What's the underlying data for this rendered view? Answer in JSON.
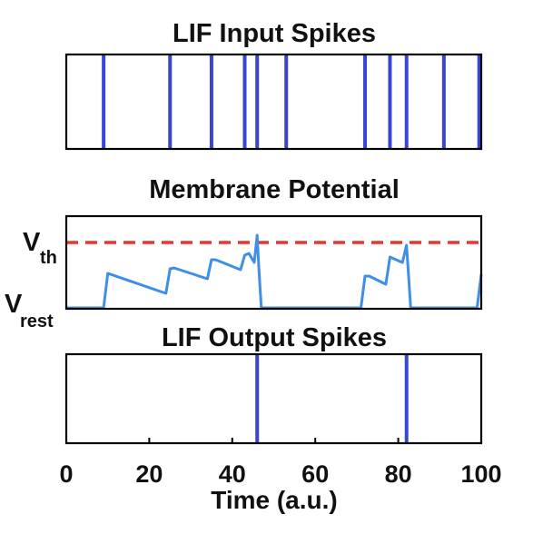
{
  "chart_data": [
    {
      "type": "line",
      "title": "LIF Input Spikes",
      "xlim": [
        0,
        100
      ],
      "series": [
        {
          "values": [
            9,
            25,
            35,
            43,
            46,
            53,
            72,
            78,
            82,
            91,
            99.5
          ]
        }
      ],
      "colors": {
        "spike": "#3a45d6"
      }
    },
    {
      "type": "line",
      "title": "Membrane Potential",
      "xlim": [
        0,
        100
      ],
      "ylim": [
        0,
        1
      ],
      "y_tick_labels": [
        {
          "main": "V",
          "sub": "th",
          "value": 0.72
        },
        {
          "main": "V",
          "sub": "rest",
          "value": 0
        }
      ],
      "series": [
        {
          "x": [
            0,
            9,
            10,
            24,
            25,
            26,
            34,
            35,
            36,
            42,
            43,
            44,
            45.3,
            46,
            46.4,
            47,
            71,
            72,
            73,
            77,
            78,
            79,
            81,
            82,
            82.5,
            83,
            99,
            100
          ],
          "y": [
            0,
            0,
            0.38,
            0.16,
            0.43,
            0.44,
            0.32,
            0.53,
            0.53,
            0.42,
            0.58,
            0.6,
            0.5,
            0.8,
            0.45,
            0,
            0,
            0.35,
            0.35,
            0.26,
            0.56,
            0.54,
            0.5,
            0.69,
            0.35,
            0,
            0,
            0.37
          ]
        }
      ],
      "threshold": 0.72,
      "colors": {
        "potential": "#3f8ee8",
        "threshold": "#e8352d"
      }
    },
    {
      "type": "line",
      "title": "LIF Output Spikes",
      "xlabel": "Time (a.u.)",
      "xlim": [
        0,
        100
      ],
      "x_ticks": [
        0,
        20,
        40,
        60,
        80,
        100
      ],
      "series": [
        {
          "values": [
            46,
            82
          ]
        }
      ],
      "colors": {
        "spike": "#3a45d6"
      }
    }
  ]
}
